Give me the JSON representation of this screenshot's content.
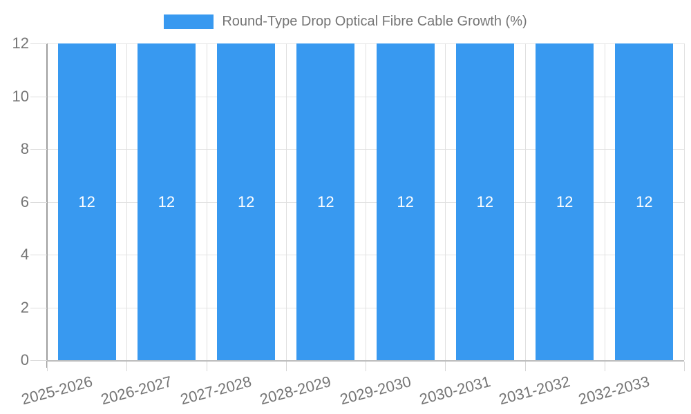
{
  "chart_data": {
    "type": "bar",
    "title": "Round-Type Drop Optical Fibre Cable Growth (%)",
    "legend_position": "top",
    "categories": [
      "2025-2026",
      "2026-2027",
      "2027-2028",
      "2028-2029",
      "2029-2030",
      "2030-2031",
      "2031-2032",
      "2032-2033"
    ],
    "series": [
      {
        "name": "Round-Type Drop Optical Fibre Cable Growth (%)",
        "values": [
          12,
          12,
          12,
          12,
          12,
          12,
          12,
          12
        ]
      }
    ],
    "bar_value_labels": [
      "12",
      "12",
      "12",
      "12",
      "12",
      "12",
      "12",
      "12"
    ],
    "xlabel": "",
    "ylabel": "",
    "ylim": [
      0,
      12
    ],
    "yticks": [
      0,
      2,
      4,
      6,
      8,
      10,
      12
    ],
    "grid": true,
    "x_tick_rotation_deg": -15,
    "colors": {
      "bar": "#3899f0",
      "bar_label": "#ffffff",
      "axis_text": "#757575",
      "grid": "#e3e3e3",
      "y_axis_line": "#9e9e9e",
      "x_axis_line": "#bdbdbd"
    }
  }
}
